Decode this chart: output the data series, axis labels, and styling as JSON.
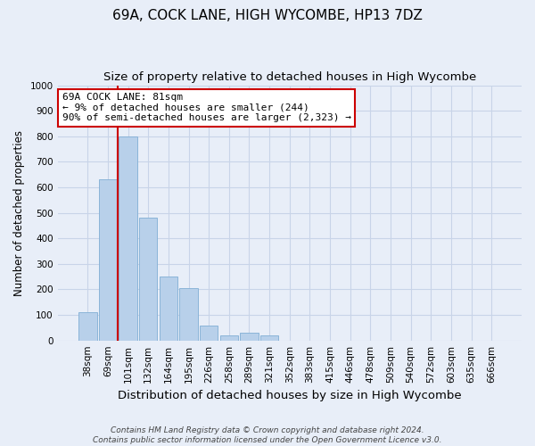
{
  "title1": "69A, COCK LANE, HIGH WYCOMBE, HP13 7DZ",
  "title2": "Size of property relative to detached houses in High Wycombe",
  "xlabel": "Distribution of detached houses by size in High Wycombe",
  "ylabel": "Number of detached properties",
  "footnote": "Contains HM Land Registry data © Crown copyright and database right 2024.\nContains public sector information licensed under the Open Government Licence v3.0.",
  "categories": [
    "38sqm",
    "69sqm",
    "101sqm",
    "132sqm",
    "164sqm",
    "195sqm",
    "226sqm",
    "258sqm",
    "289sqm",
    "321sqm",
    "352sqm",
    "383sqm",
    "415sqm",
    "446sqm",
    "478sqm",
    "509sqm",
    "540sqm",
    "572sqm",
    "603sqm",
    "635sqm",
    "666sqm"
  ],
  "values": [
    110,
    630,
    800,
    480,
    250,
    205,
    60,
    20,
    30,
    20,
    0,
    0,
    0,
    0,
    0,
    0,
    0,
    0,
    0,
    0,
    0
  ],
  "bar_color": "#b8d0ea",
  "bar_edge_color": "#8ab4d8",
  "grid_color": "#c8d4e8",
  "background_color": "#e8eef8",
  "red_line_x": 1.5,
  "annotation_text": "69A COCK LANE: 81sqm\n← 9% of detached houses are smaller (244)\n90% of semi-detached houses are larger (2,323) →",
  "annotation_box_color": "#ffffff",
  "annotation_border_color": "#cc0000",
  "ylim": [
    0,
    1000
  ],
  "title1_fontsize": 11,
  "title2_fontsize": 9.5,
  "xlabel_fontsize": 9.5,
  "ylabel_fontsize": 8.5,
  "tick_fontsize": 7.5,
  "footnote_fontsize": 6.5
}
